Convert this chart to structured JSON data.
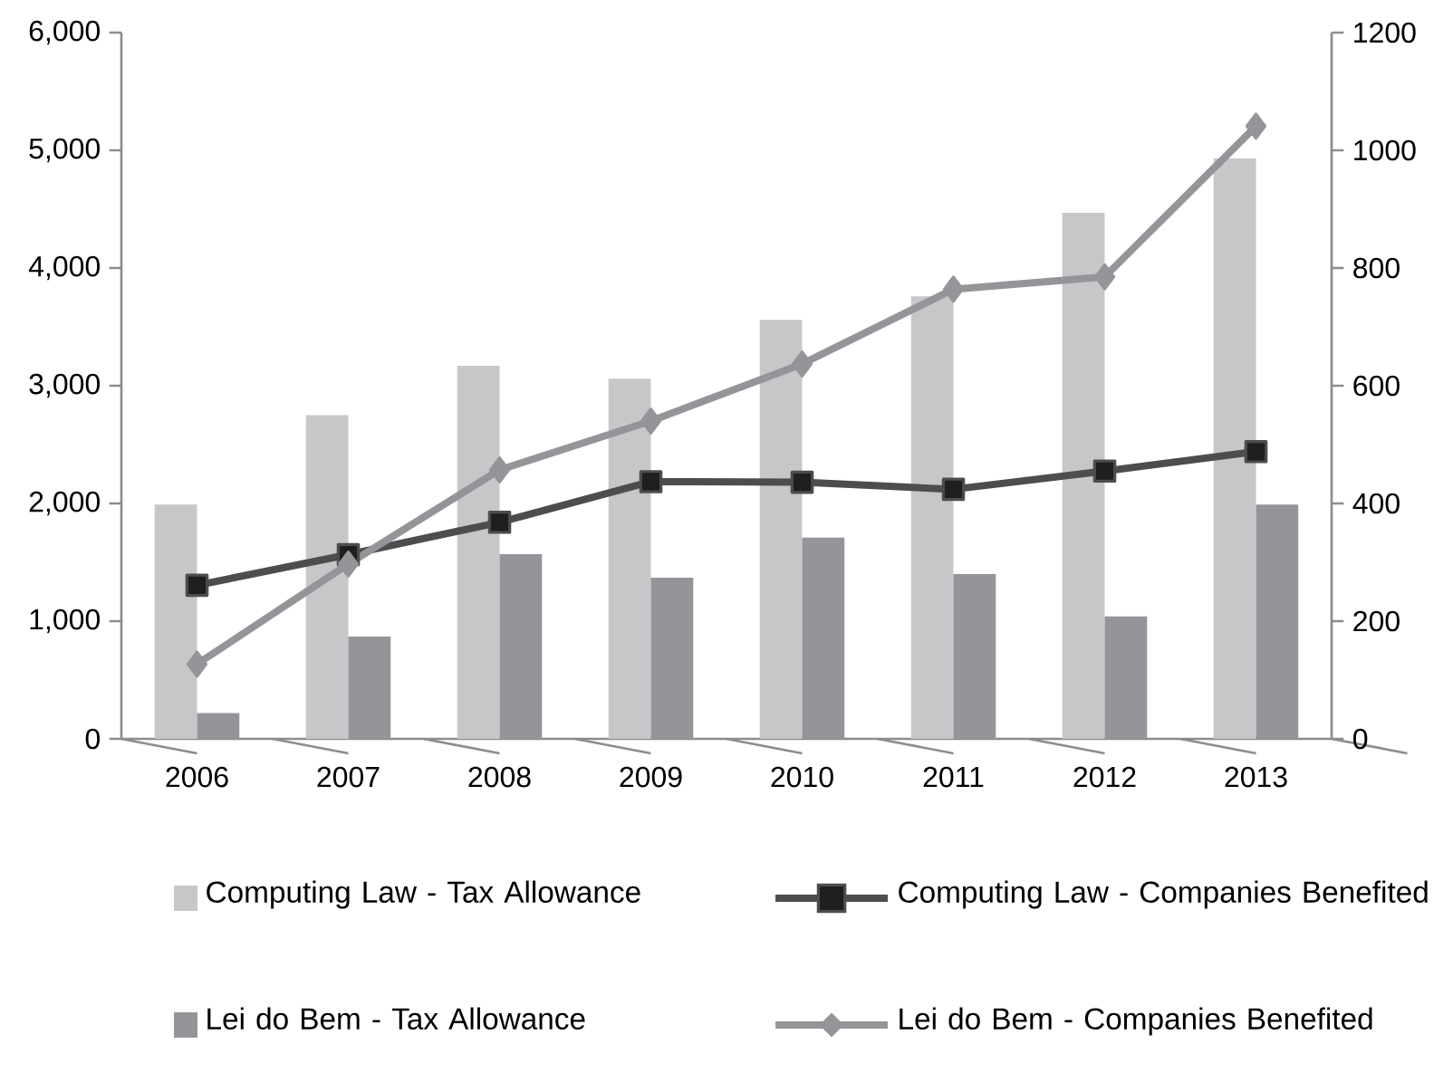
{
  "chart_data": {
    "type": "bar",
    "categories": [
      "2006",
      "2007",
      "2008",
      "2009",
      "2010",
      "2011",
      "2012",
      "2013"
    ],
    "series": [
      {
        "name": "Computing Law - Tax Allowance",
        "color": "#c6c7c9",
        "values": [
          1990,
          2750,
          3170,
          3060,
          3560,
          3760,
          4470,
          4930
        ]
      },
      {
        "name": "Computing Law - Companies Benefited",
        "type": "line",
        "axis": "y2",
        "marker": "square",
        "color": "#4d4d4f",
        "values": [
          261,
          313,
          368,
          437,
          436,
          424,
          455,
          488
        ]
      },
      {
        "name": "Lei do Bem - Tax Allowance",
        "color": "#939598",
        "values": [
          220,
          870,
          1570,
          1370,
          1710,
          1400,
          1040,
          1990
        ]
      },
      {
        "name": "Lei do Bem - Companies Benefited",
        "type": "line",
        "axis": "y2",
        "marker": "diamond",
        "color": "#939598",
        "values": [
          127,
          297,
          457,
          540,
          637,
          764,
          785,
          1041
        ]
      }
    ],
    "ylim": [
      0,
      6000
    ],
    "yticks": [
      {
        "value": 0,
        "label": "0"
      },
      {
        "value": 1000,
        "label": "1,000"
      },
      {
        "value": 2000,
        "label": "2,000"
      },
      {
        "value": 3000,
        "label": "3,000"
      },
      {
        "value": 4000,
        "label": "4,000"
      },
      {
        "value": 5000,
        "label": "5,000"
      },
      {
        "value": 6000,
        "label": "6,000"
      }
    ],
    "y2lim": [
      0,
      1200
    ],
    "y2ticks": [
      0,
      200,
      400,
      600,
      800,
      1000,
      1200
    ],
    "legend": "bottom"
  }
}
